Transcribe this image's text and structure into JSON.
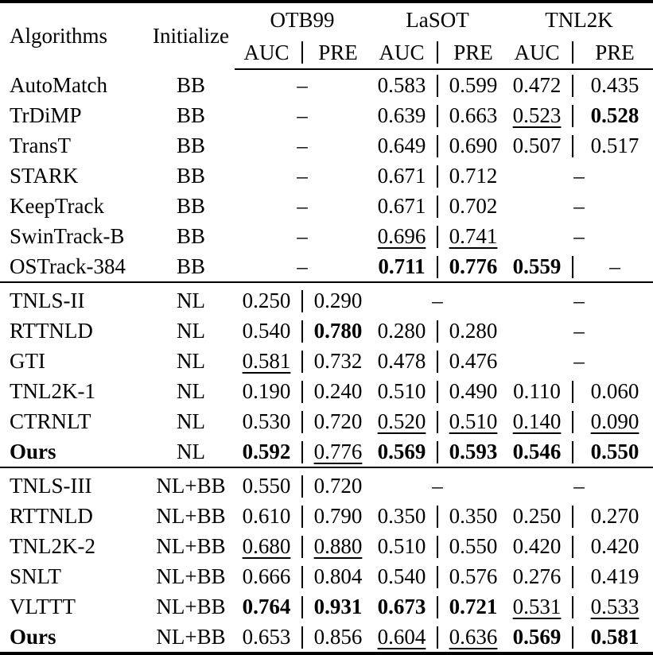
{
  "colors": {
    "text": "#000000",
    "background": "#ffffff",
    "rule": "#000000"
  },
  "missing_marker": "–",
  "header": {
    "algorithms": "Algorithms",
    "initialize": "Initialize",
    "benchmarks": [
      {
        "name": "OTB99",
        "metrics": [
          "AUC",
          "PRE"
        ]
      },
      {
        "name": "LaSOT",
        "metrics": [
          "AUC",
          "PRE"
        ]
      },
      {
        "name": "TNL2K",
        "metrics": [
          "AUC",
          "PRE"
        ]
      }
    ]
  },
  "sections": [
    {
      "rows": [
        {
          "algorithm": "AutoMatch",
          "bold": false,
          "init": "BB",
          "otb99": null,
          "lasot": {
            "auc": {
              "text": "0.583",
              "style": "normal"
            },
            "pre": {
              "text": "0.599",
              "style": "normal"
            }
          },
          "tnl2k": {
            "auc": {
              "text": "0.472",
              "style": "normal"
            },
            "pre": {
              "text": "0.435",
              "style": "normal"
            }
          }
        },
        {
          "algorithm": "TrDiMP",
          "bold": false,
          "init": "BB",
          "otb99": null,
          "lasot": {
            "auc": {
              "text": "0.639",
              "style": "normal"
            },
            "pre": {
              "text": "0.663",
              "style": "normal"
            }
          },
          "tnl2k": {
            "auc": {
              "text": "0.523",
              "style": "underline"
            },
            "pre": {
              "text": "0.528",
              "style": "bold"
            }
          }
        },
        {
          "algorithm": "TransT",
          "bold": false,
          "init": "BB",
          "otb99": null,
          "lasot": {
            "auc": {
              "text": "0.649",
              "style": "normal"
            },
            "pre": {
              "text": "0.690",
              "style": "normal"
            }
          },
          "tnl2k": {
            "auc": {
              "text": "0.507",
              "style": "normal"
            },
            "pre": {
              "text": "0.517",
              "style": "normal"
            }
          }
        },
        {
          "algorithm": "STARK",
          "bold": false,
          "init": "BB",
          "otb99": null,
          "lasot": {
            "auc": {
              "text": "0.671",
              "style": "normal"
            },
            "pre": {
              "text": "0.712",
              "style": "normal"
            }
          },
          "tnl2k": null
        },
        {
          "algorithm": "KeepTrack",
          "bold": false,
          "init": "BB",
          "otb99": null,
          "lasot": {
            "auc": {
              "text": "0.671",
              "style": "normal"
            },
            "pre": {
              "text": "0.702",
              "style": "normal"
            }
          },
          "tnl2k": null
        },
        {
          "algorithm": "SwinTrack-B",
          "bold": false,
          "init": "BB",
          "otb99": null,
          "lasot": {
            "auc": {
              "text": "0.696",
              "style": "underline"
            },
            "pre": {
              "text": "0.741",
              "style": "underline"
            }
          },
          "tnl2k": null
        },
        {
          "algorithm": "OSTrack-384",
          "bold": false,
          "init": "BB",
          "otb99": null,
          "lasot": {
            "auc": {
              "text": "0.711",
              "style": "bold"
            },
            "pre": {
              "text": "0.776",
              "style": "bold"
            }
          },
          "tnl2k": {
            "auc": {
              "text": "0.559",
              "style": "bold"
            },
            "pre": {
              "text": "–",
              "style": "normal"
            }
          }
        }
      ]
    },
    {
      "rows": [
        {
          "algorithm": "TNLS-II",
          "bold": false,
          "init": "NL",
          "otb99": {
            "auc": {
              "text": "0.250",
              "style": "normal"
            },
            "pre": {
              "text": "0.290",
              "style": "normal"
            }
          },
          "lasot": null,
          "tnl2k": null
        },
        {
          "algorithm": "RTTNLD",
          "bold": false,
          "init": "NL",
          "otb99": {
            "auc": {
              "text": "0.540",
              "style": "normal"
            },
            "pre": {
              "text": "0.780",
              "style": "bold"
            }
          },
          "lasot": {
            "auc": {
              "text": "0.280",
              "style": "normal"
            },
            "pre": {
              "text": "0.280",
              "style": "normal"
            }
          },
          "tnl2k": null
        },
        {
          "algorithm": "GTI",
          "bold": false,
          "init": "NL",
          "otb99": {
            "auc": {
              "text": "0.581",
              "style": "underline"
            },
            "pre": {
              "text": "0.732",
              "style": "normal"
            }
          },
          "lasot": {
            "auc": {
              "text": "0.478",
              "style": "normal"
            },
            "pre": {
              "text": "0.476",
              "style": "normal"
            }
          },
          "tnl2k": null
        },
        {
          "algorithm": "TNL2K-1",
          "bold": false,
          "init": "NL",
          "otb99": {
            "auc": {
              "text": "0.190",
              "style": "normal"
            },
            "pre": {
              "text": "0.240",
              "style": "normal"
            }
          },
          "lasot": {
            "auc": {
              "text": "0.510",
              "style": "normal"
            },
            "pre": {
              "text": "0.490",
              "style": "normal"
            }
          },
          "tnl2k": {
            "auc": {
              "text": "0.110",
              "style": "normal"
            },
            "pre": {
              "text": "0.060",
              "style": "normal"
            }
          }
        },
        {
          "algorithm": "CTRNLT",
          "bold": false,
          "init": "NL",
          "otb99": {
            "auc": {
              "text": "0.530",
              "style": "normal"
            },
            "pre": {
              "text": "0.720",
              "style": "normal"
            }
          },
          "lasot": {
            "auc": {
              "text": "0.520",
              "style": "underline"
            },
            "pre": {
              "text": "0.510",
              "style": "underline"
            }
          },
          "tnl2k": {
            "auc": {
              "text": "0.140",
              "style": "underline"
            },
            "pre": {
              "text": "0.090",
              "style": "underline"
            }
          }
        },
        {
          "algorithm": "Ours",
          "bold": true,
          "init": "NL",
          "otb99": {
            "auc": {
              "text": "0.592",
              "style": "bold"
            },
            "pre": {
              "text": "0.776",
              "style": "underline"
            }
          },
          "lasot": {
            "auc": {
              "text": "0.569",
              "style": "bold"
            },
            "pre": {
              "text": "0.593",
              "style": "bold"
            }
          },
          "tnl2k": {
            "auc": {
              "text": "0.546",
              "style": "bold"
            },
            "pre": {
              "text": "0.550",
              "style": "bold"
            }
          }
        }
      ]
    },
    {
      "rows": [
        {
          "algorithm": "TNLS-III",
          "bold": false,
          "init": "NL+BB",
          "otb99": {
            "auc": {
              "text": "0.550",
              "style": "normal"
            },
            "pre": {
              "text": "0.720",
              "style": "normal"
            }
          },
          "lasot": null,
          "tnl2k": null
        },
        {
          "algorithm": "RTTNLD",
          "bold": false,
          "init": "NL+BB",
          "otb99": {
            "auc": {
              "text": "0.610",
              "style": "normal"
            },
            "pre": {
              "text": "0.790",
              "style": "normal"
            }
          },
          "lasot": {
            "auc": {
              "text": "0.350",
              "style": "normal"
            },
            "pre": {
              "text": "0.350",
              "style": "normal"
            }
          },
          "tnl2k": {
            "auc": {
              "text": "0.250",
              "style": "normal"
            },
            "pre": {
              "text": "0.270",
              "style": "normal"
            }
          }
        },
        {
          "algorithm": "TNL2K-2",
          "bold": false,
          "init": "NL+BB",
          "otb99": {
            "auc": {
              "text": "0.680",
              "style": "underline"
            },
            "pre": {
              "text": "0.880",
              "style": "underline"
            }
          },
          "lasot": {
            "auc": {
              "text": "0.510",
              "style": "normal"
            },
            "pre": {
              "text": "0.550",
              "style": "normal"
            }
          },
          "tnl2k": {
            "auc": {
              "text": "0.420",
              "style": "normal"
            },
            "pre": {
              "text": "0.420",
              "style": "normal"
            }
          }
        },
        {
          "algorithm": "SNLT",
          "bold": false,
          "init": "NL+BB",
          "otb99": {
            "auc": {
              "text": "0.666",
              "style": "normal"
            },
            "pre": {
              "text": "0.804",
              "style": "normal"
            }
          },
          "lasot": {
            "auc": {
              "text": "0.540",
              "style": "normal"
            },
            "pre": {
              "text": "0.576",
              "style": "normal"
            }
          },
          "tnl2k": {
            "auc": {
              "text": "0.276",
              "style": "normal"
            },
            "pre": {
              "text": "0.419",
              "style": "normal"
            }
          }
        },
        {
          "algorithm": "VLTTT",
          "bold": false,
          "init": "NL+BB",
          "otb99": {
            "auc": {
              "text": "0.764",
              "style": "bold"
            },
            "pre": {
              "text": "0.931",
              "style": "bold"
            }
          },
          "lasot": {
            "auc": {
              "text": "0.673",
              "style": "bold"
            },
            "pre": {
              "text": "0.721",
              "style": "bold"
            }
          },
          "tnl2k": {
            "auc": {
              "text": "0.531",
              "style": "underline"
            },
            "pre": {
              "text": "0.533",
              "style": "underline"
            }
          }
        },
        {
          "algorithm": "Ours",
          "bold": true,
          "init": "NL+BB",
          "otb99": {
            "auc": {
              "text": "0.653",
              "style": "normal"
            },
            "pre": {
              "text": "0.856",
              "style": "normal"
            }
          },
          "lasot": {
            "auc": {
              "text": "0.604",
              "style": "underline"
            },
            "pre": {
              "text": "0.636",
              "style": "underline"
            }
          },
          "tnl2k": {
            "auc": {
              "text": "0.569",
              "style": "bold"
            },
            "pre": {
              "text": "0.581",
              "style": "bold"
            }
          }
        }
      ]
    }
  ]
}
